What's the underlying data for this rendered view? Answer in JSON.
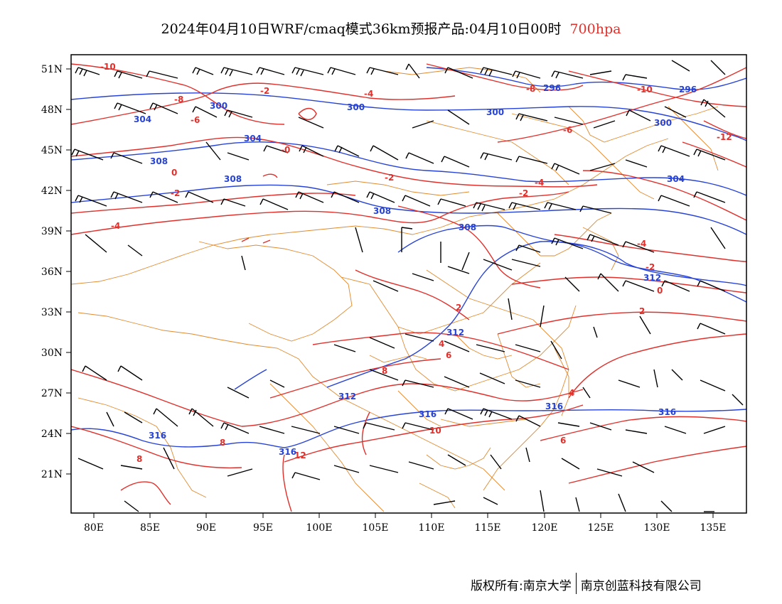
{
  "header": {
    "title": "2024年04月10日WRF/cmaq模式36km预报产品:04月10日00时",
    "level": "700hpa"
  },
  "map": {
    "lat_labels": [
      "51N",
      "48N",
      "45N",
      "42N",
      "39N",
      "36N",
      "33N",
      "30N",
      "27N",
      "24N",
      "21N"
    ],
    "lon_labels": [
      "80E",
      "85E",
      "90E",
      "95E",
      "100E",
      "105E",
      "110E",
      "115E",
      "120E",
      "125E",
      "130E",
      "135E"
    ],
    "colors": {
      "temperature": "#e0302b",
      "geopotential": "#2743d6",
      "borders": "#e08a2e",
      "wind": "#000000"
    },
    "temperature_labels": [
      "-10",
      "-8",
      "-6",
      "-2",
      "-4",
      "-8",
      "-10",
      "-6",
      "-0",
      "0",
      "-2",
      "-2",
      "-4",
      "-2",
      "-12",
      "-4",
      "-4",
      "-2",
      "0",
      "2",
      "2",
      "4",
      "4",
      "6",
      "6",
      "8",
      "8",
      "8",
      "10",
      "12"
    ],
    "height_labels": [
      "296",
      "296",
      "300",
      "300",
      "300",
      "300",
      "304",
      "304",
      "304",
      "308",
      "308",
      "308",
      "308",
      "312",
      "312",
      "312",
      "316",
      "316",
      "316",
      "316",
      "316"
    ]
  },
  "footer": {
    "copyright_left": "版权所有:南京大学",
    "copyright_right": "南京创蓝科技有限公司"
  }
}
